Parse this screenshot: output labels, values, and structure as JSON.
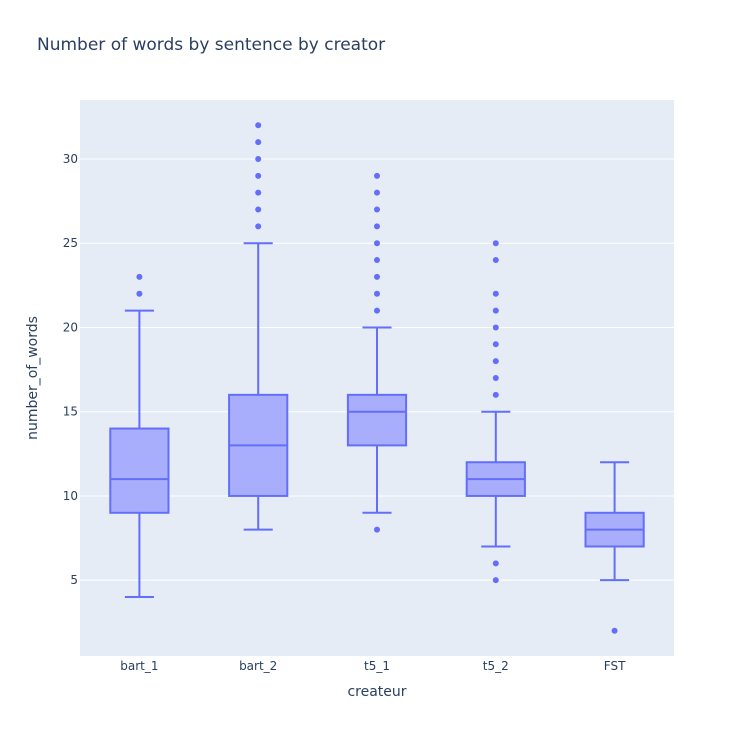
{
  "chart_data": {
    "type": "box",
    "title": "Number of words by sentence by creator",
    "xlabel": "createur",
    "ylabel": "number_of_words",
    "ylim": [
      0.5,
      33.5
    ],
    "yticks": [
      5,
      10,
      15,
      20,
      25,
      30
    ],
    "grid": true,
    "colors": {
      "plot_bg": "#e5ecf6",
      "grid": "#ffffff",
      "box_line": "#636efa",
      "box_fill": "#a8aefb",
      "text": "#2a3f5f"
    },
    "categories": [
      "bart_1",
      "bart_2",
      "t5_1",
      "t5_2",
      "FST"
    ],
    "boxes": [
      {
        "name": "bart_1",
        "lower_fence": 4,
        "q1": 9,
        "median": 11,
        "q3": 14,
        "upper_fence": 21,
        "outliers": [
          22,
          23
        ]
      },
      {
        "name": "bart_2",
        "lower_fence": 8,
        "q1": 10,
        "median": 13,
        "q3": 16,
        "upper_fence": 25,
        "outliers": [
          26,
          27,
          28,
          29,
          30,
          31,
          32
        ]
      },
      {
        "name": "t5_1",
        "lower_fence": 9,
        "q1": 13,
        "median": 15,
        "q3": 16,
        "upper_fence": 20,
        "outliers": [
          8,
          21,
          22,
          23,
          24,
          25,
          26,
          27,
          28,
          29
        ]
      },
      {
        "name": "t5_2",
        "lower_fence": 7,
        "q1": 10,
        "median": 11,
        "q3": 12,
        "upper_fence": 15,
        "outliers": [
          5,
          6,
          16,
          17,
          18,
          19,
          20,
          21,
          22,
          24,
          25
        ]
      },
      {
        "name": "FST",
        "lower_fence": 5,
        "q1": 7,
        "median": 8,
        "q3": 9,
        "upper_fence": 12,
        "outliers": [
          2
        ]
      }
    ]
  }
}
